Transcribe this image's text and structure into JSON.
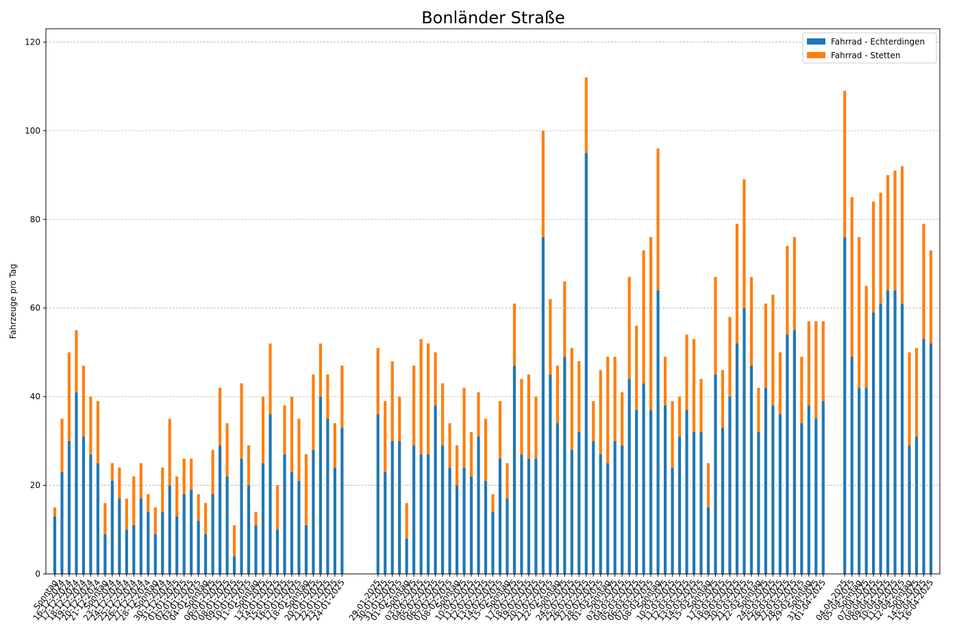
{
  "chart_data": {
    "type": "stacked_bar",
    "title": "Bonländer Straße",
    "y_label": "Fahrzeuge pro Tag",
    "categories": [
      "Sonntag",
      "16-12-2024",
      "17-12-2024",
      "18-12-2024",
      "19-12-2024",
      "20-12-2024",
      "21-12-2024",
      "Sonntag",
      "23-12-2024",
      "24-12-2024",
      "25-12-2024",
      "26-12-2024",
      "27-12-2024",
      "28-12-2024",
      "Sonntag",
      "30-12-2024",
      "31-12-2024",
      "01-01-2025",
      "02-01-2025",
      "03-01-2025",
      "04-01-2025",
      "Sonntag",
      "06-01-2025",
      "07-01-2025",
      "08-01-2025",
      "09-01-2025",
      "10-01-2025",
      "11-01-2025",
      "Sonntag",
      "13-01-2025",
      "14-01-2025",
      "15-01-2025",
      "16-01-2025",
      "17-01-2025",
      "18-01-2025",
      "Sonntag",
      "20-01-2025",
      "21-01-2025",
      "22-01-2025",
      "23-01-2025",
      "24-01-2025",
      null,
      null,
      null,
      null,
      "29-01-2025",
      "30-01-2025",
      "31-01-2025",
      "01-02-2025",
      "Sonntag",
      "03-02-2025",
      "04-02-2025",
      "05-02-2025",
      "06-02-2025",
      "07-02-2025",
      "08-02-2025",
      "Sonntag",
      "10-02-2025",
      "11-02-2025",
      "12-02-2025",
      "13-02-2025",
      "14-02-2025",
      "15-02-2025",
      "Sonntag",
      "17-02-2025",
      "18-02-2025",
      "19-02-2025",
      "20-02-2025",
      "21-02-2025",
      "22-02-2025",
      "Sonntag",
      "24-02-2025",
      "25-02-2025",
      "26-02-2025",
      "27-02-2025",
      "28-02-2025",
      "01-03-2025",
      "Sonntag",
      "03-03-2025",
      "04-03-2025",
      "05-03-2025",
      "06-03-2025",
      "07-03-2025",
      "08-03-2025",
      "Sonntag",
      "10-03-2025",
      "11-03-2025",
      "12-03-2025",
      "13-03-2025",
      "14-03-2025",
      "15-03-2025",
      "Sonntag",
      "17-03-2025",
      "18-03-2025",
      "19-03-2025",
      "20-03-2025",
      "21-03-2025",
      "22-03-2025",
      "Sonntag",
      "24-03-2025",
      "25-03-2025",
      "26-03-2025",
      "27-03-2025",
      "28-03-2025",
      "29-03-2025",
      "Sonntag",
      "31-03-2025",
      "01-04-2025",
      null,
      null,
      "04-04-2025",
      "05-04-2025",
      "Sonntag",
      "07-04-2025",
      "08-04-2025",
      "09-04-2025",
      "10-04-2025",
      "11-04-2025",
      "12-04-2025",
      "Sonntag",
      "14-04-2025",
      "15-04-2025",
      "16-04-2025"
    ],
    "series": [
      {
        "name": "Fahrrad - Echterdingen",
        "color": "#1f77b4",
        "values": [
          13,
          23,
          30,
          41,
          31,
          27,
          25,
          9,
          21,
          17,
          10,
          11,
          17,
          14,
          9,
          14,
          20,
          13,
          18,
          19,
          12,
          9,
          18,
          29,
          22,
          4,
          26,
          20,
          11,
          25,
          36,
          10,
          27,
          23,
          21,
          11,
          28,
          40,
          35,
          24,
          33,
          null,
          null,
          null,
          null,
          36,
          23,
          30,
          30,
          8,
          29,
          27,
          27,
          38,
          29,
          24,
          20,
          24,
          22,
          31,
          21,
          14,
          26,
          17,
          47,
          27,
          26,
          26,
          76,
          45,
          34,
          49,
          28,
          32,
          95,
          30,
          27,
          25,
          30,
          29,
          44,
          37,
          43,
          37,
          64,
          38,
          24,
          31,
          37,
          32,
          32,
          15,
          45,
          33,
          40,
          52,
          60,
          47,
          32,
          42,
          38,
          36,
          54,
          55,
          34,
          38,
          35,
          39,
          null,
          null,
          76,
          49,
          42,
          42,
          59,
          61,
          64,
          64,
          61,
          29,
          31,
          53,
          52
        ]
      },
      {
        "name": "Fahrrad - Stetten",
        "color": "#ff7f0e",
        "values": [
          2,
          12,
          20,
          14,
          16,
          13,
          14,
          7,
          4,
          7,
          7,
          11,
          8,
          4,
          6,
          10,
          15,
          9,
          8,
          7,
          6,
          7,
          10,
          13,
          12,
          7,
          17,
          9,
          3,
          15,
          16,
          10,
          11,
          17,
          14,
          16,
          17,
          12,
          10,
          10,
          14,
          null,
          null,
          null,
          null,
          15,
          16,
          18,
          10,
          8,
          18,
          26,
          25,
          12,
          14,
          10,
          9,
          18,
          10,
          10,
          14,
          4,
          13,
          8,
          14,
          17,
          19,
          14,
          24,
          17,
          13,
          17,
          23,
          16,
          17,
          9,
          19,
          24,
          19,
          12,
          23,
          19,
          30,
          39,
          32,
          11,
          15,
          9,
          17,
          21,
          12,
          10,
          22,
          13,
          18,
          27,
          29,
          20,
          10,
          19,
          25,
          14,
          20,
          21,
          15,
          19,
          22,
          18,
          null,
          null,
          33,
          36,
          34,
          23,
          25,
          25,
          26,
          27,
          31,
          21,
          20,
          26,
          21
        ]
      }
    ],
    "ylim": [
      0,
      123
    ],
    "yticks": [
      0,
      20,
      40,
      60,
      80,
      100,
      120
    ],
    "grid": true,
    "legend": "upper right"
  }
}
